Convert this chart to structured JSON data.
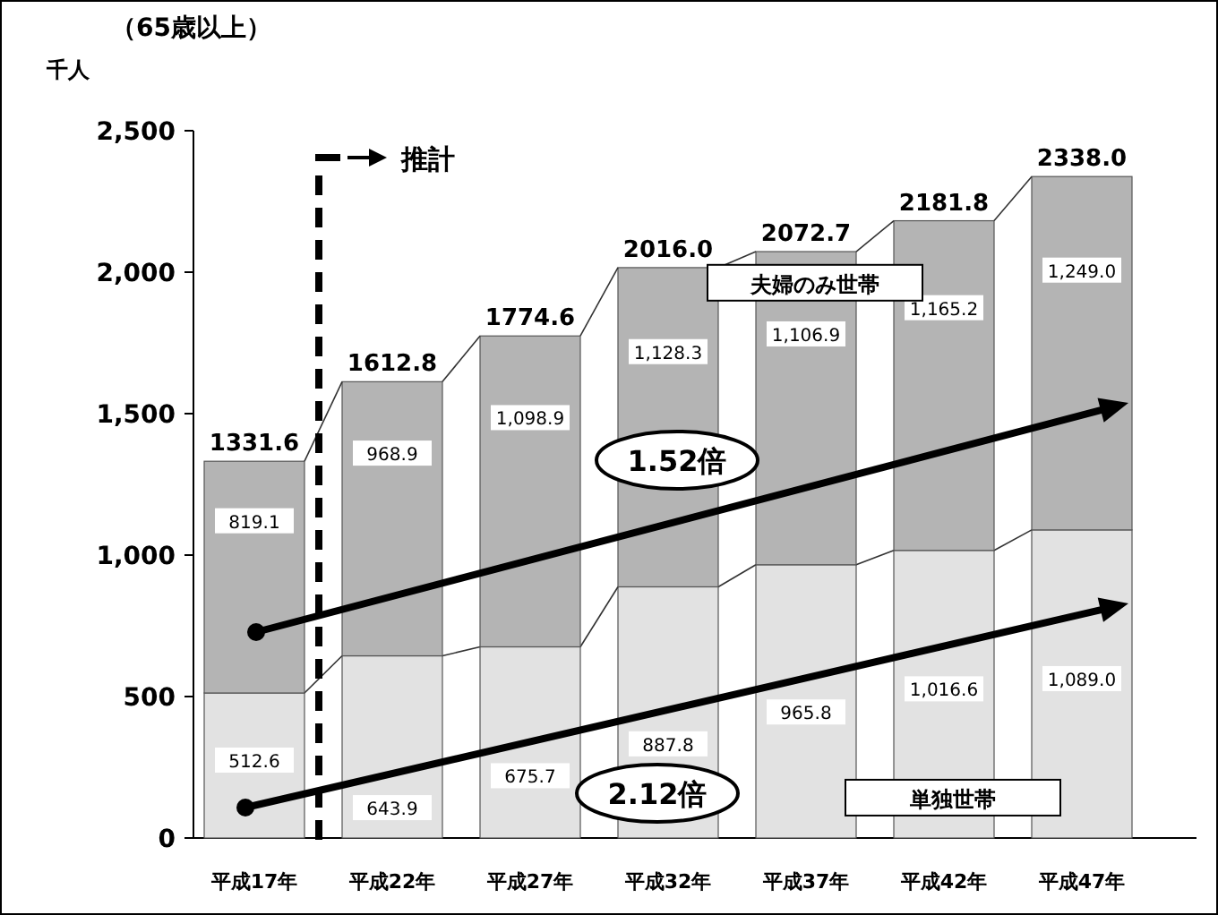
{
  "chart_data": {
    "type": "bar",
    "stacked": true,
    "subtitle": "（65歳以上）",
    "ylabel": "千人",
    "categories": [
      "平成17年",
      "平成22年",
      "平成27年",
      "平成32年",
      "平成37年",
      "平成42年",
      "平成47年"
    ],
    "series": [
      {
        "name": "単独世帯",
        "color": "#e2e2e2",
        "values": [
          512.6,
          643.9,
          675.7,
          887.8,
          965.8,
          1016.6,
          1089.0
        ],
        "value_labels": [
          "512.6",
          "643.9",
          "675.7",
          "887.8",
          "965.8",
          "1,016.6",
          "1,089.0"
        ]
      },
      {
        "name": "夫婦のみ世帯",
        "color": "#b4b4b4",
        "values": [
          819.1,
          968.9,
          1098.9,
          1128.3,
          1106.9,
          1165.2,
          1249.0
        ],
        "value_labels": [
          "819.1",
          "968.9",
          "1,098.9",
          "1,128.3",
          "1,106.9",
          "1,165.2",
          "1,249.0"
        ]
      }
    ],
    "totals": [
      "1331.6",
      "1612.8",
      "1774.6",
      "2016.0",
      "2072.7",
      "2181.8",
      "2338.0"
    ],
    "ylim": [
      0,
      2500
    ],
    "yticks": [
      {
        "value": 0,
        "label": "0"
      },
      {
        "value": 500,
        "label": "500"
      },
      {
        "value": 1000,
        "label": "1,000"
      },
      {
        "value": 1500,
        "label": "1,500"
      },
      {
        "value": 2000,
        "label": "2,000"
      },
      {
        "value": 2500,
        "label": "2,500"
      }
    ],
    "annotations": [
      "推計",
      "1.52倍",
      "2.12倍"
    ]
  }
}
